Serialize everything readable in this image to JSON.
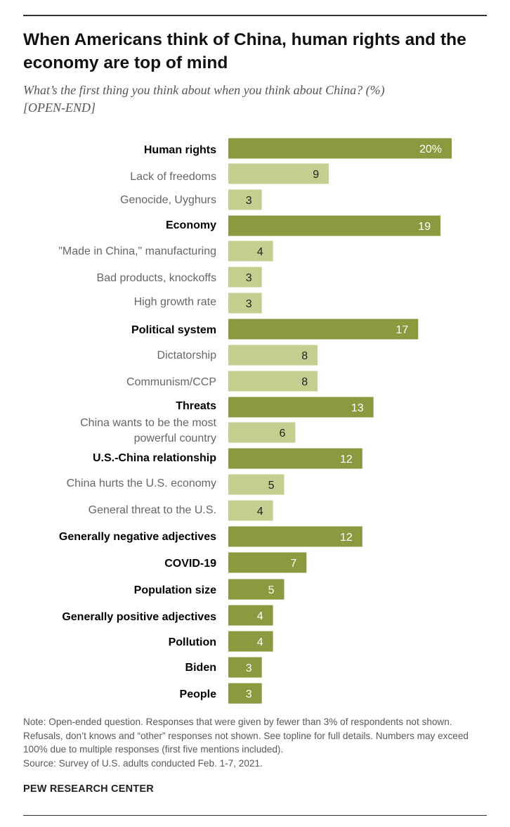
{
  "title": "When Americans think of China, human rights and the economy are top of mind",
  "subtitle_line1": "What’s the first thing you think about when you think about China? (%)",
  "subtitle_line2": "[OPEN-END]",
  "colors": {
    "category_bar": "#8a9a3e",
    "subcategory_bar": "#c5cd8f",
    "category_value_text": "#ffffff",
    "subcategory_value_text": "#222222",
    "category_label": "#000000",
    "subcategory_label": "#666666"
  },
  "chart_data": {
    "type": "bar",
    "orientation": "horizontal",
    "title": "When Americans think of China, human rights and the economy are top of mind",
    "unit": "%",
    "categories": [
      "Human rights",
      "Lack of freedoms",
      "Genocide, Uyghurs",
      "Economy",
      "\"Made in China,\" manufacturing",
      "Bad products, knockoffs",
      "High growth rate",
      "Political system",
      "Dictatorship",
      "Communism/CCP",
      "Threats",
      "China wants to be the most powerful country",
      "U.S.-China relationship",
      "China hurts the U.S. economy",
      "General threat to the U.S.",
      "Generally negative adjectives",
      "COVID-19",
      "Population size",
      "Generally positive adjectives",
      "Pollution",
      "Biden",
      "People"
    ],
    "values": [
      20,
      9,
      3,
      19,
      4,
      3,
      3,
      17,
      8,
      8,
      13,
      6,
      12,
      5,
      4,
      12,
      7,
      5,
      4,
      4,
      3,
      3
    ],
    "value_labels": [
      "20%",
      "9",
      "3",
      "19",
      "4",
      "3",
      "3",
      "17",
      "8",
      "8",
      "13",
      "6",
      "12",
      "5",
      "4",
      "12",
      "7",
      "5",
      "4",
      "4",
      "3",
      "3"
    ],
    "label_lines": [
      [
        "Human rights"
      ],
      [
        "Lack of freedoms"
      ],
      [
        "Genocide, Uyghurs"
      ],
      [
        "Economy"
      ],
      [
        "\"Made in China,\" manufacturing"
      ],
      [
        "Bad products, knockoffs"
      ],
      [
        "High growth rate"
      ],
      [
        "Political system"
      ],
      [
        "Dictatorship"
      ],
      [
        "Communism/CCP"
      ],
      [
        "Threats"
      ],
      [
        "China wants to be the most",
        "powerful country"
      ],
      [
        "U.S.-China relationship"
      ],
      [
        "China hurts the U.S. economy"
      ],
      [
        "General threat to the U.S."
      ],
      [
        "Generally negative adjectives"
      ],
      [
        "COVID-19"
      ],
      [
        "Population size"
      ],
      [
        "Generally positive adjectives"
      ],
      [
        "Pollution"
      ],
      [
        "Biden"
      ],
      [
        "People"
      ]
    ],
    "level": [
      "category",
      "sub",
      "sub",
      "category",
      "sub",
      "sub",
      "sub",
      "category",
      "sub",
      "sub",
      "category",
      "sub",
      "category",
      "sub",
      "sub",
      "category",
      "category",
      "category",
      "category",
      "category",
      "category",
      "category"
    ],
    "xlim": [
      0,
      20
    ],
    "grid": false
  },
  "note": "Note: Open-ended question. Responses that were given by fewer than 3% of respondents not shown. Refusals, don’t knows and “other” responses not shown. See topline for full details. Numbers may exceed 100% due to multiple responses (first five mentions included).",
  "source": "Source: Survey of U.S. adults conducted Feb. 1-7, 2021.",
  "organization": "PEW RESEARCH CENTER"
}
